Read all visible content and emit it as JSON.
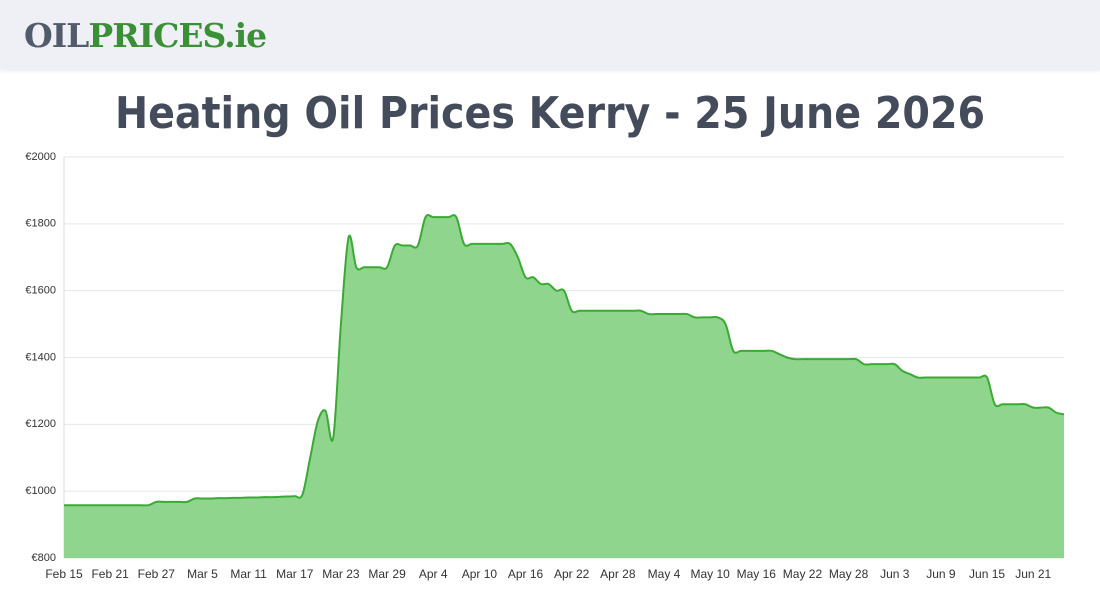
{
  "header": {
    "logo_dark": "OIL",
    "logo_green": "PRICES.ie"
  },
  "chart_data": {
    "type": "area",
    "title": "Heating Oil Prices Kerry - 25 June 2026",
    "categories": [
      "Feb 15",
      null,
      null,
      null,
      null,
      null,
      "Feb 21",
      null,
      null,
      null,
      null,
      null,
      "Feb 27",
      null,
      null,
      null,
      null,
      null,
      "Mar 5",
      null,
      null,
      null,
      null,
      null,
      "Mar 11",
      null,
      null,
      null,
      null,
      null,
      "Mar 17",
      null,
      null,
      null,
      null,
      null,
      "Mar 23",
      null,
      null,
      null,
      null,
      null,
      "Mar 29",
      null,
      null,
      null,
      null,
      null,
      "Apr 4",
      null,
      null,
      null,
      null,
      null,
      "Apr 10",
      null,
      null,
      null,
      null,
      null,
      "Apr 16",
      null,
      null,
      null,
      null,
      null,
      "Apr 22",
      null,
      null,
      null,
      null,
      null,
      "Apr 28",
      null,
      null,
      null,
      null,
      null,
      "May 4",
      null,
      null,
      null,
      null,
      null,
      "May 10",
      null,
      null,
      null,
      null,
      null,
      "May 16",
      null,
      null,
      null,
      null,
      null,
      "May 22",
      null,
      null,
      null,
      null,
      null,
      "May 28",
      null,
      null,
      null,
      null,
      null,
      "Jun 3",
      null,
      null,
      null,
      null,
      null,
      "Jun 9",
      null,
      null,
      null,
      null,
      null,
      "Jun 15",
      null,
      null,
      null,
      null,
      null,
      "Jun 21",
      null,
      null,
      null,
      null
    ],
    "values": [
      958,
      958,
      958,
      958,
      958,
      958,
      958,
      958,
      958,
      958,
      958,
      958,
      968,
      968,
      968,
      968,
      968,
      978,
      978,
      978,
      979,
      979,
      980,
      980,
      981,
      981,
      982,
      982,
      983,
      984,
      985,
      990,
      1100,
      1210,
      1240,
      1160,
      1500,
      1760,
      1670,
      1670,
      1670,
      1670,
      1670,
      1735,
      1735,
      1735,
      1735,
      1820,
      1820,
      1820,
      1820,
      1820,
      1740,
      1740,
      1740,
      1740,
      1740,
      1740,
      1740,
      1700,
      1640,
      1640,
      1620,
      1620,
      1600,
      1600,
      1540,
      1540,
      1540,
      1540,
      1540,
      1540,
      1540,
      1540,
      1540,
      1540,
      1530,
      1530,
      1530,
      1530,
      1530,
      1530,
      1520,
      1520,
      1520,
      1520,
      1500,
      1420,
      1420,
      1420,
      1420,
      1420,
      1420,
      1410,
      1400,
      1395,
      1395,
      1395,
      1395,
      1395,
      1395,
      1395,
      1395,
      1395,
      1380,
      1380,
      1380,
      1380,
      1380,
      1360,
      1350,
      1340,
      1340,
      1340,
      1340,
      1340,
      1340,
      1340,
      1340,
      1340,
      1340,
      1260,
      1260,
      1260,
      1260,
      1260,
      1250,
      1250,
      1250,
      1235,
      1230
    ],
    "color": "#3aaa35",
    "fill": "#90d58e",
    "ylim": [
      800,
      2000
    ],
    "yticks": [
      {
        "value": 800,
        "label": "€800"
      },
      {
        "value": 1000,
        "label": "€1000"
      },
      {
        "value": 1200,
        "label": "€1200"
      },
      {
        "value": 1400,
        "label": "€1400"
      },
      {
        "value": 1600,
        "label": "€1600"
      },
      {
        "value": 1800,
        "label": "€1800"
      },
      {
        "value": 2000,
        "label": "€2000"
      }
    ],
    "grid": true
  }
}
